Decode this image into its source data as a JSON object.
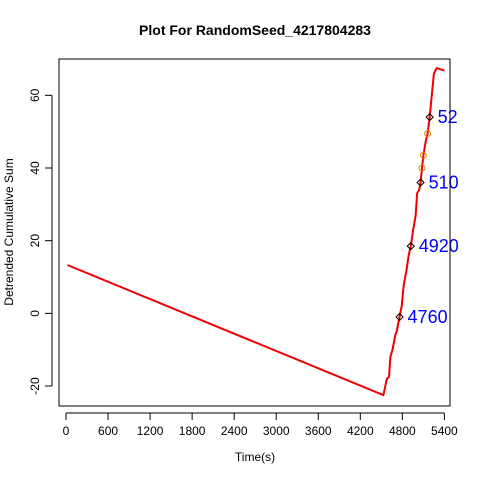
{
  "chart_data": {
    "type": "line",
    "title": "Plot For RandomSeed_4217804283",
    "xlabel": "Time(s)",
    "ylabel": "Detrended Cumulative Sum",
    "xlim": [
      -100,
      5480
    ],
    "ylim": [
      -25.5,
      70
    ],
    "x_ticks": [
      0,
      600,
      1200,
      1800,
      2400,
      3000,
      3600,
      4200,
      4800,
      5400
    ],
    "y_ticks": [
      -20,
      0,
      20,
      40,
      60
    ],
    "grid": false,
    "line_color": "#ee0000",
    "series": [
      {
        "points": [
          [
            20,
            13.3
          ],
          [
            4530,
            -22.5
          ],
          [
            4580,
            -18.0
          ],
          [
            4610,
            -17.5
          ],
          [
            4630,
            -12.0
          ],
          [
            4660,
            -10.0
          ],
          [
            4700,
            -6.0
          ],
          [
            4720,
            -5.0
          ],
          [
            4760,
            -1.0
          ],
          [
            4790,
            2.0
          ],
          [
            4820,
            8.0
          ],
          [
            4860,
            12.0
          ],
          [
            4890,
            16.0
          ],
          [
            4920,
            18.5
          ],
          [
            4950,
            22.5
          ],
          [
            4990,
            27.0
          ],
          [
            5010,
            33.0
          ],
          [
            5040,
            34.0
          ],
          [
            5060,
            36.0
          ],
          [
            5080,
            40.0
          ],
          [
            5100,
            43.5
          ],
          [
            5130,
            47.0
          ],
          [
            5160,
            49.5
          ],
          [
            5190,
            54.0
          ],
          [
            5220,
            60.0
          ],
          [
            5250,
            66.0
          ],
          [
            5290,
            67.5
          ],
          [
            5400,
            66.8
          ]
        ]
      }
    ],
    "markers": [
      {
        "x": 4760,
        "y": -1.0
      },
      {
        "x": 4920,
        "y": 18.5
      },
      {
        "x": 5060,
        "y": 36.0
      },
      {
        "x": 5190,
        "y": 54.0
      }
    ],
    "orange_markers": [
      {
        "x": 5080,
        "y": 40.0
      },
      {
        "x": 5100,
        "y": 43.5
      },
      {
        "x": 5160,
        "y": 49.5
      }
    ],
    "annotations": [
      {
        "label": "4760",
        "x": 4760,
        "y": -1.0
      },
      {
        "label": "4920",
        "x": 4920,
        "y": 18.5
      },
      {
        "label": "510",
        "x": 5060,
        "y": 36.0
      },
      {
        "label": "52",
        "x": 5190,
        "y": 54.0
      }
    ]
  }
}
